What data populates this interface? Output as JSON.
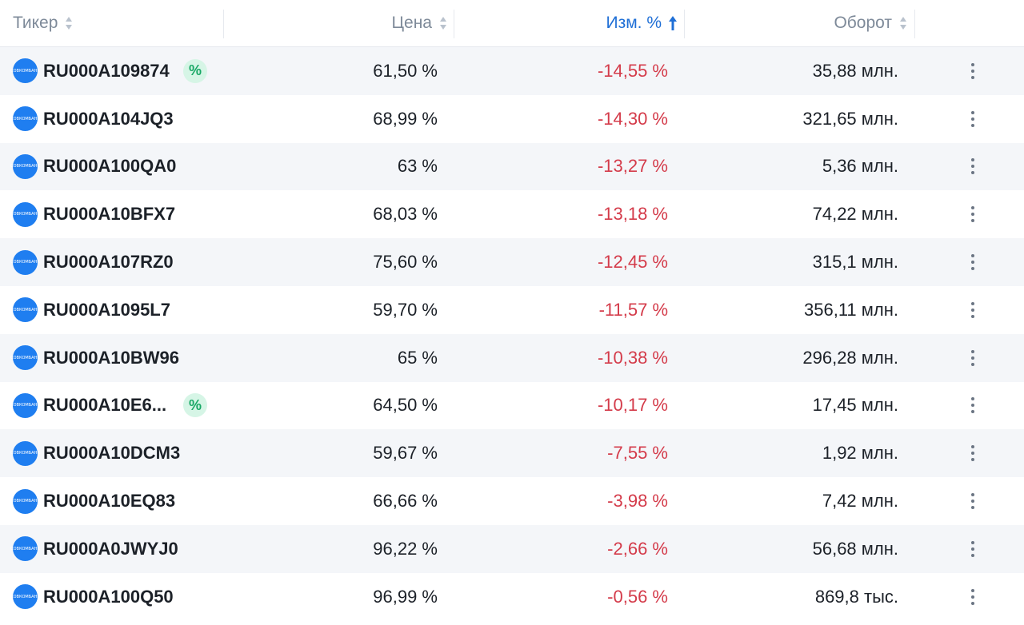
{
  "header": {
    "ticker": "Тикер",
    "price": "Цена",
    "change": "Изм. %",
    "turnover": "Оборот"
  },
  "colors": {
    "negative": "#d43b4a",
    "sort_active": "#1f6fd6",
    "logo": "#1f7ef0",
    "coupon_badge": "#19a866"
  },
  "logo_text": "СОВКОМБАНК",
  "rows": [
    {
      "ticker": "RU000A109874",
      "coupon": true,
      "price": "61,50 %",
      "change": "-14,55 %",
      "turnover": "35,88 млн."
    },
    {
      "ticker": "RU000A104JQ3",
      "coupon": false,
      "price": "68,99 %",
      "change": "-14,30 %",
      "turnover": "321,65 млн."
    },
    {
      "ticker": "RU000A100QA0",
      "coupon": false,
      "price": "63 %",
      "change": "-13,27 %",
      "turnover": "5,36 млн."
    },
    {
      "ticker": "RU000A10BFX7",
      "coupon": false,
      "price": "68,03 %",
      "change": "-13,18 %",
      "turnover": "74,22 млн."
    },
    {
      "ticker": "RU000A107RZ0",
      "coupon": false,
      "price": "75,60 %",
      "change": "-12,45 %",
      "turnover": "315,1 млн."
    },
    {
      "ticker": "RU000A1095L7",
      "coupon": false,
      "price": "59,70 %",
      "change": "-11,57 %",
      "turnover": "356,11 млн."
    },
    {
      "ticker": "RU000A10BW96",
      "coupon": false,
      "price": "65 %",
      "change": "-10,38 %",
      "turnover": "296,28 млн."
    },
    {
      "ticker": "RU000A10E6...",
      "coupon": true,
      "price": "64,50 %",
      "change": "-10,17 %",
      "turnover": "17,45 млн."
    },
    {
      "ticker": "RU000A10DCM3",
      "coupon": false,
      "price": "59,67 %",
      "change": "-7,55 %",
      "turnover": "1,92 млн."
    },
    {
      "ticker": "RU000A10EQ83",
      "coupon": false,
      "price": "66,66 %",
      "change": "-3,98 %",
      "turnover": "7,42 млн."
    },
    {
      "ticker": "RU000A0JWYJ0",
      "coupon": false,
      "price": "96,22 %",
      "change": "-2,66 %",
      "turnover": "56,68 млн."
    },
    {
      "ticker": "RU000A100Q50",
      "coupon": false,
      "price": "96,99 %",
      "change": "-0,56 %",
      "turnover": "869,8 тыс."
    }
  ]
}
